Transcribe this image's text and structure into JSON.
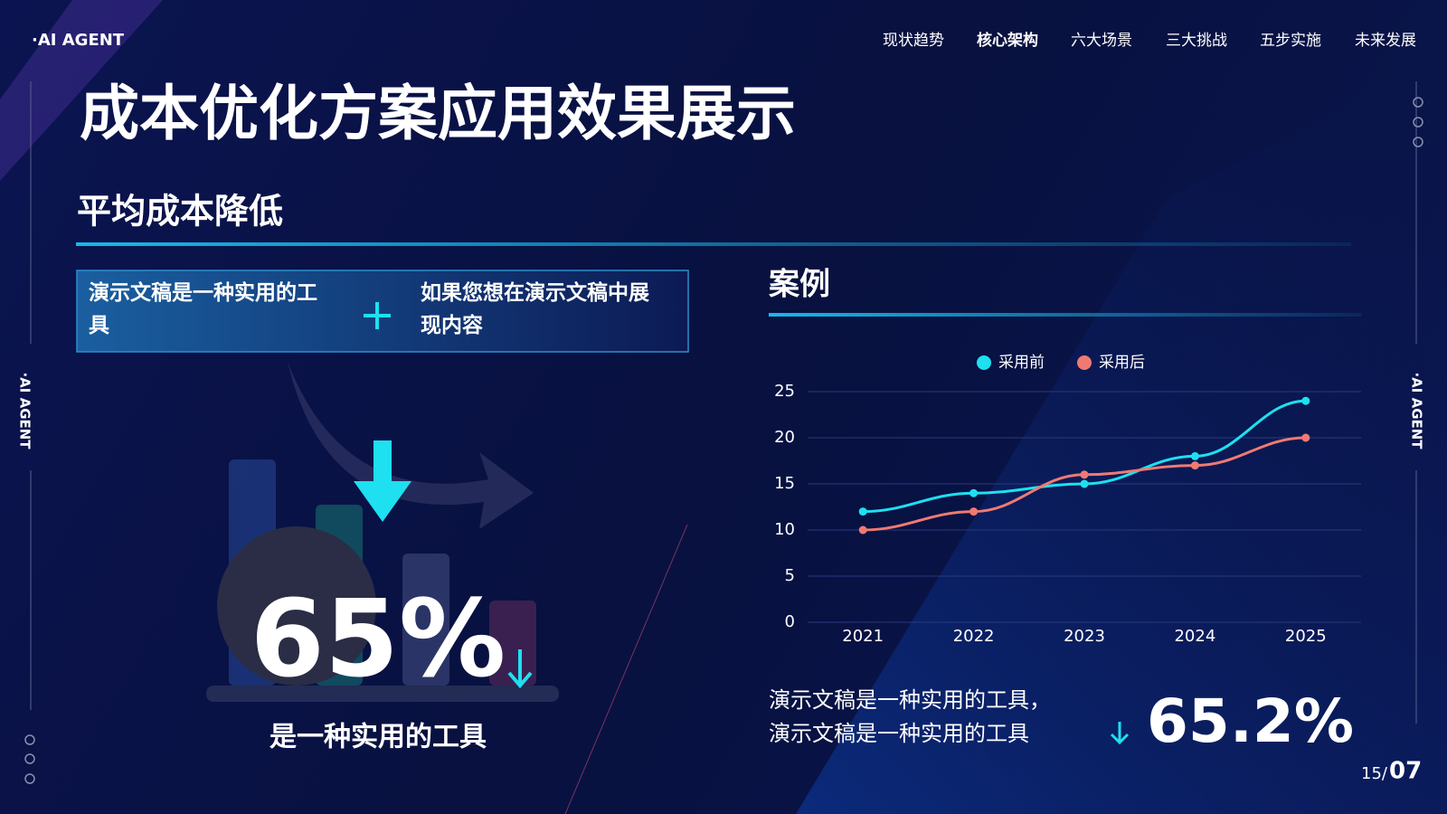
{
  "header": {
    "brand": "·AI AGENT",
    "nav": [
      "现状趋势",
      "核心架构",
      "六大场景",
      "三大挑战",
      "五步实施",
      "未来发展"
    ],
    "title": "成本优化方案应用效果展示",
    "side_label": "·AI AGENT"
  },
  "left": {
    "heading": "平均成本降低",
    "box_left": "演示文稿是一种实用的工具",
    "box_right": "如果您想在演示文稿中展现内容",
    "stat": "65%",
    "caption": "是一种实用的工具"
  },
  "right": {
    "heading": "案例",
    "note_lines": [
      "演示文稿是一种实用的工具，",
      "演示文稿是一种实用的工具"
    ],
    "stat": "65.2%"
  },
  "footer": {
    "page": "15/",
    "total": "07"
  },
  "chart_data": {
    "type": "line",
    "categories": [
      "2021",
      "2022",
      "2023",
      "2024",
      "2025"
    ],
    "series": [
      {
        "name": "采用前",
        "color": "#1ee0f0",
        "values": [
          12,
          14,
          15,
          18,
          24
        ]
      },
      {
        "name": "采用后",
        "color": "#f07a72",
        "values": [
          10,
          12,
          16,
          17,
          20
        ]
      }
    ],
    "ylim": [
      0,
      25
    ],
    "yticks": [
      0,
      5,
      10,
      15,
      20,
      25
    ],
    "grid": true,
    "legend": "top"
  }
}
